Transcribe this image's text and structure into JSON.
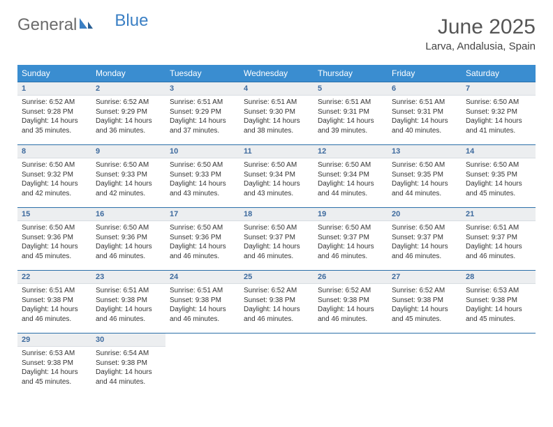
{
  "logo": {
    "word1": "General",
    "word2": "Blue"
  },
  "title": "June 2025",
  "location": "Larva, Andalusia, Spain",
  "colors": {
    "header_bg": "#3a8dd0",
    "accent": "#2a6fa8",
    "daynum_bg": "#eceef0",
    "daynum_fg": "#3d6a9e",
    "logo_gray": "#6b6b6b",
    "logo_blue": "#3a7fc4"
  },
  "weekdays": [
    "Sunday",
    "Monday",
    "Tuesday",
    "Wednesday",
    "Thursday",
    "Friday",
    "Saturday"
  ],
  "weeks": [
    [
      {
        "n": "1",
        "sr": "Sunrise: 6:52 AM",
        "ss": "Sunset: 9:28 PM",
        "dl1": "Daylight: 14 hours",
        "dl2": "and 35 minutes."
      },
      {
        "n": "2",
        "sr": "Sunrise: 6:52 AM",
        "ss": "Sunset: 9:29 PM",
        "dl1": "Daylight: 14 hours",
        "dl2": "and 36 minutes."
      },
      {
        "n": "3",
        "sr": "Sunrise: 6:51 AM",
        "ss": "Sunset: 9:29 PM",
        "dl1": "Daylight: 14 hours",
        "dl2": "and 37 minutes."
      },
      {
        "n": "4",
        "sr": "Sunrise: 6:51 AM",
        "ss": "Sunset: 9:30 PM",
        "dl1": "Daylight: 14 hours",
        "dl2": "and 38 minutes."
      },
      {
        "n": "5",
        "sr": "Sunrise: 6:51 AM",
        "ss": "Sunset: 9:31 PM",
        "dl1": "Daylight: 14 hours",
        "dl2": "and 39 minutes."
      },
      {
        "n": "6",
        "sr": "Sunrise: 6:51 AM",
        "ss": "Sunset: 9:31 PM",
        "dl1": "Daylight: 14 hours",
        "dl2": "and 40 minutes."
      },
      {
        "n": "7",
        "sr": "Sunrise: 6:50 AM",
        "ss": "Sunset: 9:32 PM",
        "dl1": "Daylight: 14 hours",
        "dl2": "and 41 minutes."
      }
    ],
    [
      {
        "n": "8",
        "sr": "Sunrise: 6:50 AM",
        "ss": "Sunset: 9:32 PM",
        "dl1": "Daylight: 14 hours",
        "dl2": "and 42 minutes."
      },
      {
        "n": "9",
        "sr": "Sunrise: 6:50 AM",
        "ss": "Sunset: 9:33 PM",
        "dl1": "Daylight: 14 hours",
        "dl2": "and 42 minutes."
      },
      {
        "n": "10",
        "sr": "Sunrise: 6:50 AM",
        "ss": "Sunset: 9:33 PM",
        "dl1": "Daylight: 14 hours",
        "dl2": "and 43 minutes."
      },
      {
        "n": "11",
        "sr": "Sunrise: 6:50 AM",
        "ss": "Sunset: 9:34 PM",
        "dl1": "Daylight: 14 hours",
        "dl2": "and 43 minutes."
      },
      {
        "n": "12",
        "sr": "Sunrise: 6:50 AM",
        "ss": "Sunset: 9:34 PM",
        "dl1": "Daylight: 14 hours",
        "dl2": "and 44 minutes."
      },
      {
        "n": "13",
        "sr": "Sunrise: 6:50 AM",
        "ss": "Sunset: 9:35 PM",
        "dl1": "Daylight: 14 hours",
        "dl2": "and 44 minutes."
      },
      {
        "n": "14",
        "sr": "Sunrise: 6:50 AM",
        "ss": "Sunset: 9:35 PM",
        "dl1": "Daylight: 14 hours",
        "dl2": "and 45 minutes."
      }
    ],
    [
      {
        "n": "15",
        "sr": "Sunrise: 6:50 AM",
        "ss": "Sunset: 9:36 PM",
        "dl1": "Daylight: 14 hours",
        "dl2": "and 45 minutes."
      },
      {
        "n": "16",
        "sr": "Sunrise: 6:50 AM",
        "ss": "Sunset: 9:36 PM",
        "dl1": "Daylight: 14 hours",
        "dl2": "and 46 minutes."
      },
      {
        "n": "17",
        "sr": "Sunrise: 6:50 AM",
        "ss": "Sunset: 9:36 PM",
        "dl1": "Daylight: 14 hours",
        "dl2": "and 46 minutes."
      },
      {
        "n": "18",
        "sr": "Sunrise: 6:50 AM",
        "ss": "Sunset: 9:37 PM",
        "dl1": "Daylight: 14 hours",
        "dl2": "and 46 minutes."
      },
      {
        "n": "19",
        "sr": "Sunrise: 6:50 AM",
        "ss": "Sunset: 9:37 PM",
        "dl1": "Daylight: 14 hours",
        "dl2": "and 46 minutes."
      },
      {
        "n": "20",
        "sr": "Sunrise: 6:50 AM",
        "ss": "Sunset: 9:37 PM",
        "dl1": "Daylight: 14 hours",
        "dl2": "and 46 minutes."
      },
      {
        "n": "21",
        "sr": "Sunrise: 6:51 AM",
        "ss": "Sunset: 9:37 PM",
        "dl1": "Daylight: 14 hours",
        "dl2": "and 46 minutes."
      }
    ],
    [
      {
        "n": "22",
        "sr": "Sunrise: 6:51 AM",
        "ss": "Sunset: 9:38 PM",
        "dl1": "Daylight: 14 hours",
        "dl2": "and 46 minutes."
      },
      {
        "n": "23",
        "sr": "Sunrise: 6:51 AM",
        "ss": "Sunset: 9:38 PM",
        "dl1": "Daylight: 14 hours",
        "dl2": "and 46 minutes."
      },
      {
        "n": "24",
        "sr": "Sunrise: 6:51 AM",
        "ss": "Sunset: 9:38 PM",
        "dl1": "Daylight: 14 hours",
        "dl2": "and 46 minutes."
      },
      {
        "n": "25",
        "sr": "Sunrise: 6:52 AM",
        "ss": "Sunset: 9:38 PM",
        "dl1": "Daylight: 14 hours",
        "dl2": "and 46 minutes."
      },
      {
        "n": "26",
        "sr": "Sunrise: 6:52 AM",
        "ss": "Sunset: 9:38 PM",
        "dl1": "Daylight: 14 hours",
        "dl2": "and 46 minutes."
      },
      {
        "n": "27",
        "sr": "Sunrise: 6:52 AM",
        "ss": "Sunset: 9:38 PM",
        "dl1": "Daylight: 14 hours",
        "dl2": "and 45 minutes."
      },
      {
        "n": "28",
        "sr": "Sunrise: 6:53 AM",
        "ss": "Sunset: 9:38 PM",
        "dl1": "Daylight: 14 hours",
        "dl2": "and 45 minutes."
      }
    ],
    [
      {
        "n": "29",
        "sr": "Sunrise: 6:53 AM",
        "ss": "Sunset: 9:38 PM",
        "dl1": "Daylight: 14 hours",
        "dl2": "and 45 minutes."
      },
      {
        "n": "30",
        "sr": "Sunrise: 6:54 AM",
        "ss": "Sunset: 9:38 PM",
        "dl1": "Daylight: 14 hours",
        "dl2": "and 44 minutes."
      },
      null,
      null,
      null,
      null,
      null
    ]
  ]
}
